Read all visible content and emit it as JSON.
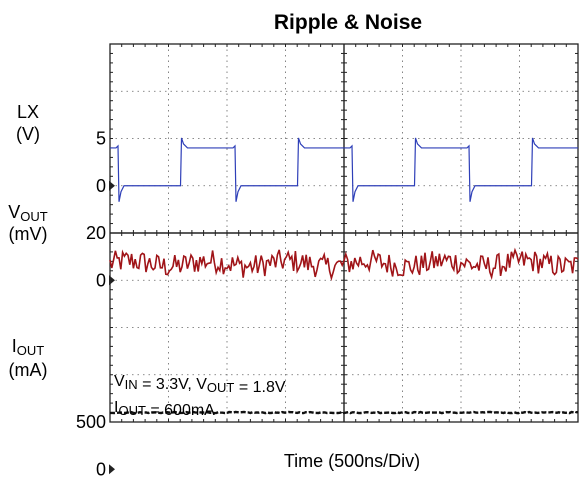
{
  "chart_data": {
    "type": "line",
    "title": "Ripple & Noise",
    "xlabel": "Time (500ns/Div)",
    "x_divisions": 8,
    "y_divisions": 8,
    "grid": true,
    "channels": [
      {
        "label_main": "LX",
        "label_sub": "",
        "unit": "(V)",
        "color": "#2e3fb8",
        "ticks": [
          {
            "label": "5",
            "value": 5
          },
          {
            "label": "0",
            "value": 0
          }
        ],
        "scale_per_div": 5,
        "ground_div_from_top": 3,
        "waveform": "square",
        "period_ns": 1000,
        "high_v": 4,
        "low_v": 0
      },
      {
        "label_main": "V",
        "label_sub": "OUT",
        "unit": "(mV)",
        "color": "#a01418",
        "ticks": [
          {
            "label": "20",
            "value": 20
          },
          {
            "label": "0",
            "value": 0
          }
        ],
        "scale_per_div": 20,
        "ground_div_from_top": 5,
        "waveform": "noise",
        "mean_mv": 7,
        "pp_mv": 10
      },
      {
        "label_main": "I",
        "label_sub": "OUT",
        "unit": "(mA)",
        "color": "#111111",
        "ticks": [
          {
            "label": "500",
            "value": 500
          },
          {
            "label": "0",
            "value": 0
          }
        ],
        "scale_per_div": 500,
        "ground_div_from_top": 9,
        "waveform": "dc",
        "level_ma": 600
      }
    ],
    "annotations": {
      "line1": [
        {
          "t": "V",
          "s": false
        },
        {
          "t": "IN",
          "s": true
        },
        {
          "t": " = 3.3V, V",
          "s": false
        },
        {
          "t": "OUT",
          "s": true
        },
        {
          "t": " = 1.8V",
          "s": false
        }
      ],
      "line2": [
        {
          "t": "I",
          "s": false
        },
        {
          "t": "OUT",
          "s": true
        },
        {
          "t": " = 600mA",
          "s": false
        }
      ]
    }
  }
}
